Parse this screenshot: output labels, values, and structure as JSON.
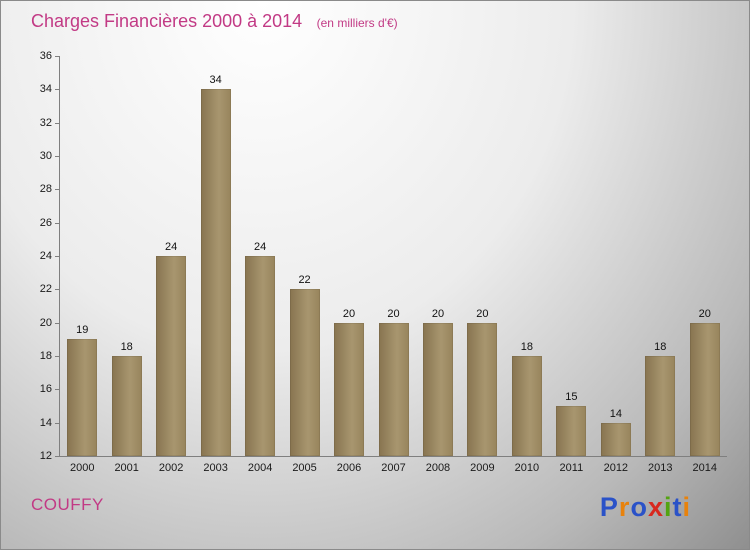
{
  "title": "Charges Financières 2000 à 2014",
  "subtitle": "(en milliers d'€)",
  "footer": {
    "commune": "COUFFY"
  },
  "logo": {
    "name": "Proxiti",
    "letters": [
      {
        "ch": "P",
        "color": "#2a52c8"
      },
      {
        "ch": "r",
        "color": "#e8820c"
      },
      {
        "ch": "o",
        "color": "#2a52c8"
      },
      {
        "ch": "x",
        "color": "#d8281e"
      },
      {
        "ch": "i",
        "color": "#54a412"
      },
      {
        "ch": "t",
        "color": "#2a52c8"
      },
      {
        "ch": "i",
        "color": "#e8820c"
      }
    ]
  },
  "colors": {
    "title": "#c23a85",
    "bar_dark": "#877450",
    "bar_light": "#a8966f",
    "axis": "#7f7f7f",
    "tick_text": "#1a1a1a"
  },
  "chart_data": {
    "type": "bar",
    "title": "Charges Financières 2000 à 2014",
    "subtitle": "(en milliers d'€)",
    "categories": [
      "2000",
      "2001",
      "2002",
      "2003",
      "2004",
      "2005",
      "2006",
      "2007",
      "2008",
      "2009",
      "2010",
      "2011",
      "2012",
      "2013",
      "2014"
    ],
    "values": [
      19,
      18,
      24,
      34,
      24,
      22,
      20,
      20,
      20,
      20,
      18,
      15,
      14,
      18,
      20
    ],
    "xlabel": "",
    "ylabel": "",
    "ylim": [
      12,
      36
    ],
    "ytick_step": 2,
    "grid": false,
    "legend": "none",
    "bar_labels": true
  }
}
